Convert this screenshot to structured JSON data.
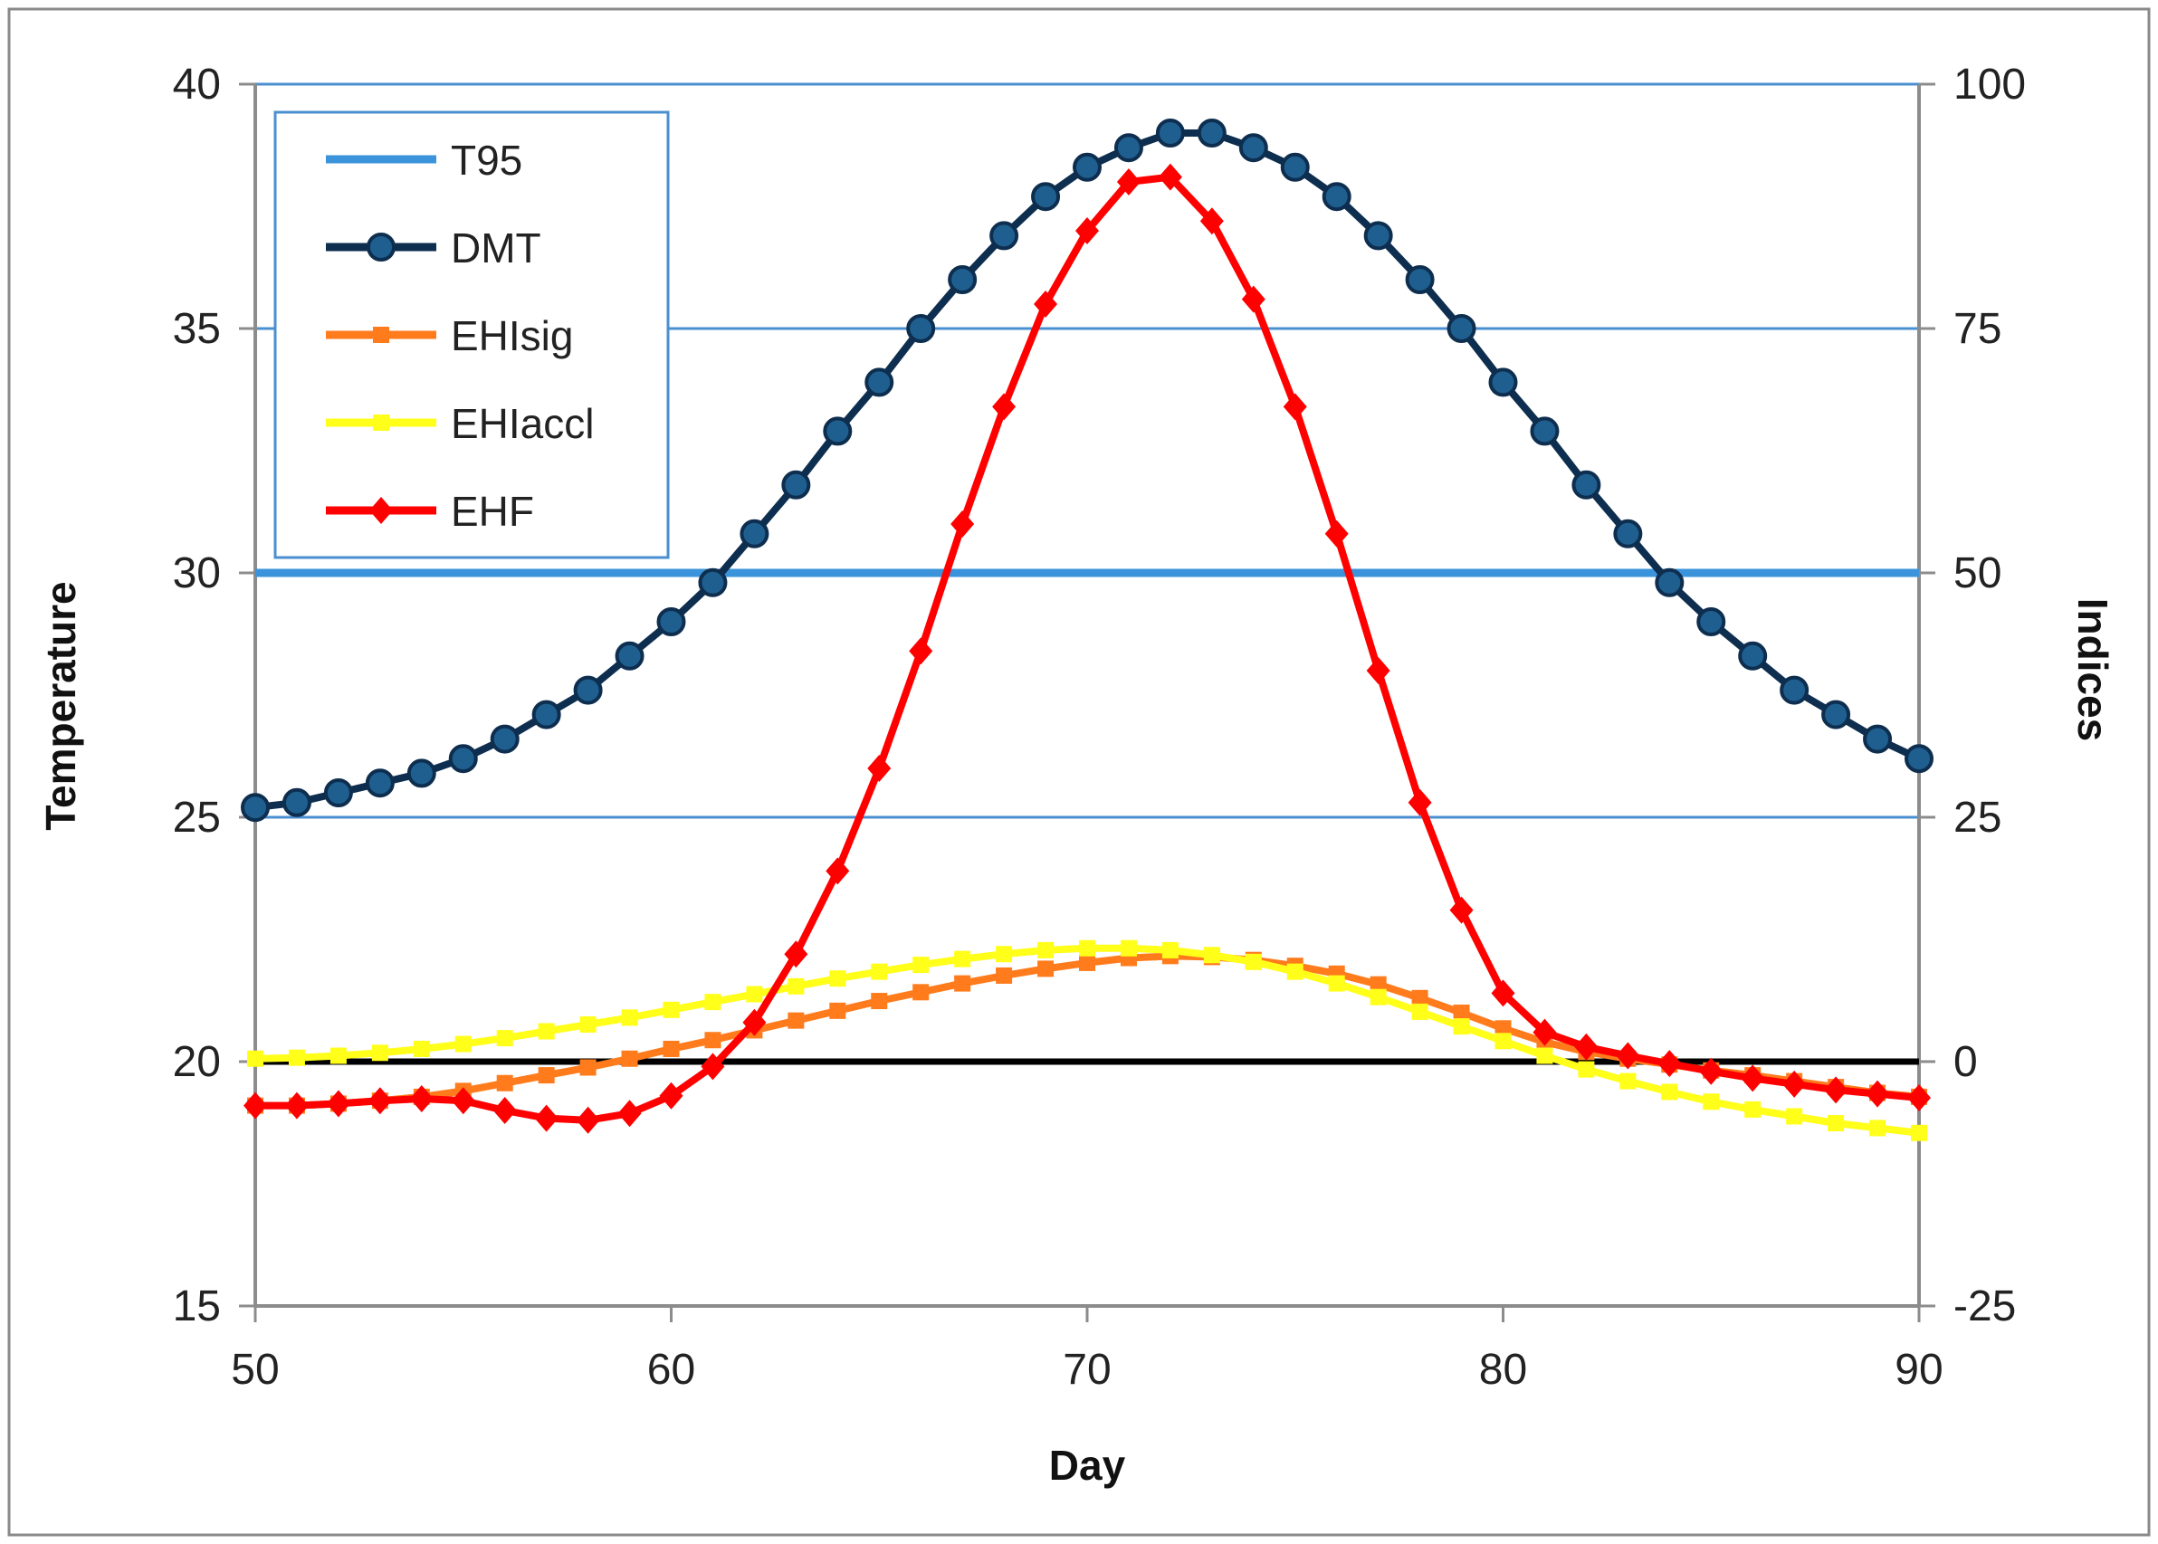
{
  "chart_data": {
    "type": "line",
    "x_axis": {
      "label": "Day",
      "range": [
        50,
        90
      ],
      "ticks": [
        "50",
        "60",
        "70",
        "80",
        "90"
      ]
    },
    "y_left": {
      "label": "Temperature",
      "range": [
        15,
        40
      ],
      "ticks": [
        "15",
        "20",
        "25",
        "30",
        "35",
        "40"
      ]
    },
    "y_right": {
      "label": "Indices",
      "range": [
        -25,
        100
      ],
      "ticks": [
        "-25",
        "0",
        "25",
        "50",
        "75",
        "100"
      ]
    },
    "gridlines_right": [
      25,
      75,
      100
    ],
    "zero_line_right": 0,
    "colors": {
      "grid": "#4a8fd0",
      "axis": "#8c8c8c",
      "zero": "#000000",
      "T95": "#3b94db",
      "DMT": "#0e2e4f",
      "EHIsig": "#ff7b1c",
      "EHIaccl": "#ffff1a",
      "EHF": "#ff0000"
    },
    "legend": [
      "T95",
      "DMT",
      "EHIsig",
      "EHIaccl",
      "EHF"
    ],
    "series": [
      {
        "name": "T95",
        "axis": "left",
        "marker": "none",
        "x": [
          50,
          90
        ],
        "values": [
          30.0,
          30.0
        ]
      },
      {
        "name": "DMT",
        "axis": "left",
        "marker": "circle",
        "x": [
          50,
          51,
          52,
          53,
          54,
          55,
          56,
          57,
          58,
          59,
          60,
          61,
          62,
          63,
          64,
          65,
          66,
          67,
          68,
          69,
          70,
          71,
          72,
          73,
          74,
          75,
          76,
          77,
          78,
          79,
          80,
          81,
          82,
          83,
          84,
          85,
          86,
          87,
          88,
          89,
          90
        ],
        "values": [
          25.2,
          25.3,
          25.5,
          25.7,
          25.9,
          26.2,
          26.6,
          27.1,
          27.6,
          28.3,
          29.0,
          29.8,
          30.8,
          31.8,
          32.9,
          33.9,
          35.0,
          36.0,
          36.9,
          37.7,
          38.3,
          38.7,
          39.0,
          39.0,
          38.7,
          38.3,
          37.7,
          36.9,
          36.0,
          35.0,
          33.9,
          32.9,
          31.8,
          30.8,
          29.8,
          29.0,
          28.3,
          27.6,
          27.1,
          26.6,
          26.2
        ]
      },
      {
        "name": "EHIsig",
        "axis": "right",
        "marker": "square",
        "x": [
          50,
          51,
          52,
          53,
          54,
          55,
          56,
          57,
          58,
          59,
          60,
          61,
          62,
          63,
          64,
          65,
          66,
          67,
          68,
          69,
          70,
          71,
          72,
          73,
          74,
          75,
          76,
          77,
          78,
          79,
          80,
          81,
          82,
          83,
          84,
          85,
          86,
          87,
          88,
          89,
          90
        ],
        "values": [
          -4.5,
          -4.5,
          -4.3,
          -4.0,
          -3.6,
          -3.0,
          -2.2,
          -1.4,
          -0.6,
          0.3,
          1.3,
          2.2,
          3.2,
          4.2,
          5.2,
          6.2,
          7.1,
          8.0,
          8.8,
          9.5,
          10.1,
          10.6,
          10.8,
          10.7,
          10.4,
          9.8,
          9.0,
          7.9,
          6.5,
          5.0,
          3.4,
          2.0,
          1.0,
          0.3,
          -0.3,
          -0.9,
          -1.4,
          -2.0,
          -2.6,
          -3.2,
          -3.6
        ]
      },
      {
        "name": "EHIaccl",
        "axis": "right",
        "marker": "square",
        "x": [
          50,
          51,
          52,
          53,
          54,
          55,
          56,
          57,
          58,
          59,
          60,
          61,
          62,
          63,
          64,
          65,
          66,
          67,
          68,
          69,
          70,
          71,
          72,
          73,
          74,
          75,
          76,
          77,
          78,
          79,
          80,
          81,
          82,
          83,
          84,
          85,
          86,
          87,
          88,
          89,
          90
        ],
        "values": [
          0.3,
          0.4,
          0.6,
          0.9,
          1.3,
          1.8,
          2.4,
          3.1,
          3.8,
          4.5,
          5.3,
          6.1,
          6.9,
          7.7,
          8.5,
          9.2,
          9.9,
          10.5,
          11.0,
          11.4,
          11.6,
          11.6,
          11.4,
          10.9,
          10.2,
          9.2,
          8.0,
          6.6,
          5.1,
          3.6,
          2.1,
          0.6,
          -0.8,
          -2.0,
          -3.1,
          -4.1,
          -4.9,
          -5.6,
          -6.3,
          -6.8,
          -7.3
        ]
      },
      {
        "name": "EHF",
        "axis": "right",
        "marker": "diamond",
        "x": [
          50,
          51,
          52,
          53,
          54,
          55,
          56,
          57,
          58,
          59,
          60,
          61,
          62,
          63,
          64,
          65,
          66,
          67,
          68,
          69,
          70,
          71,
          72,
          73,
          74,
          75,
          76,
          77,
          78,
          79,
          80,
          81,
          82,
          83,
          84,
          85,
          86,
          87,
          88,
          89,
          90
        ],
        "values": [
          -4.5,
          -4.5,
          -4.3,
          -4.0,
          -3.8,
          -4.0,
          -5.0,
          -5.8,
          -6.0,
          -5.3,
          -3.5,
          -0.5,
          4.0,
          11.0,
          19.5,
          30.0,
          42.0,
          55.0,
          67.0,
          77.5,
          85.0,
          90.0,
          90.5,
          86.0,
          78.0,
          67.0,
          54.0,
          40.0,
          26.5,
          15.5,
          7.0,
          3.0,
          1.5,
          0.6,
          -0.2,
          -1.0,
          -1.7,
          -2.3,
          -2.9,
          -3.3,
          -3.7
        ]
      }
    ]
  }
}
